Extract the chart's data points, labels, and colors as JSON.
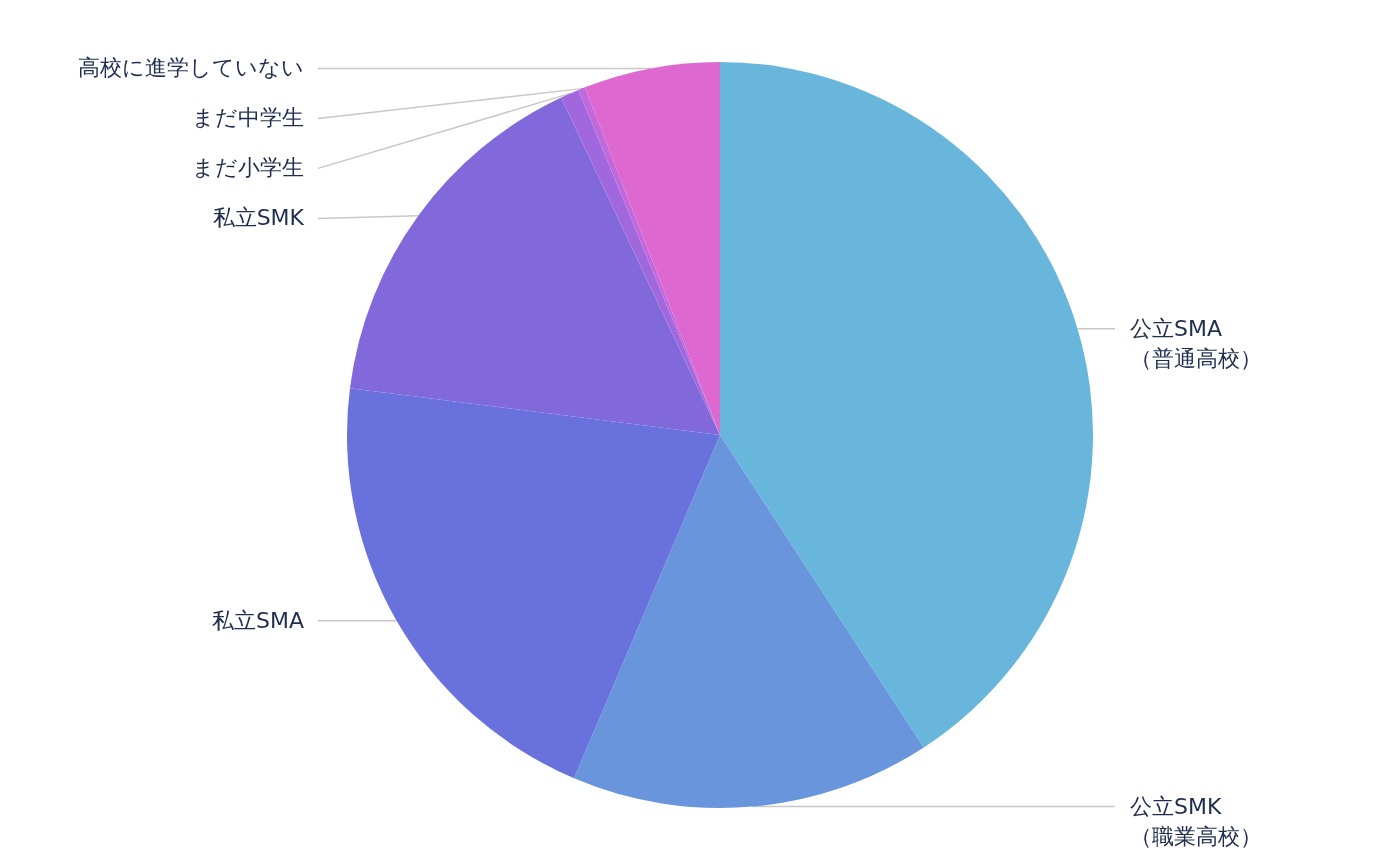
{
  "chart_data": {
    "type": "pie",
    "categories": [
      "公立SMA\n（普通高校）",
      "公立SMK\n（職業高校）",
      "私立SMA",
      "私立SMK",
      "まだ小学生",
      "まだ中学生",
      "高校に進学していない"
    ],
    "values": [
      40.8,
      15.6,
      20.6,
      16.0,
      0.8,
      0.3,
      5.9
    ],
    "colors": [
      "#68b6dc",
      "#6895dc",
      "#6971dc",
      "#8169dc",
      "#a068dc",
      "#c068dc",
      "#dc68d0"
    ]
  }
}
